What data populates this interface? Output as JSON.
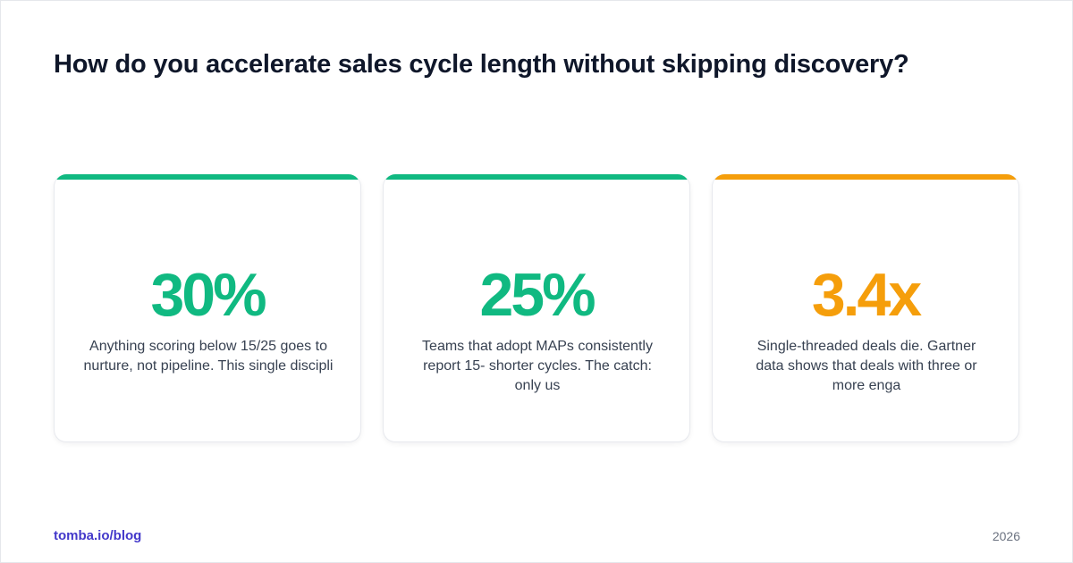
{
  "page": {
    "title": "How do you accelerate sales cycle length without skipping discovery?"
  },
  "colors": {
    "green": "#10b981",
    "orange": "#f59e0b",
    "title_text": "#0f172a",
    "body_text": "#374151",
    "link": "#4338ca",
    "muted": "#6b7280"
  },
  "cards": [
    {
      "value": "30%",
      "description": "Anything scoring below 15/25 goes to nurture, not pipeline. This single discipli",
      "accent": "#10b981"
    },
    {
      "value": "25%",
      "description": "Teams that adopt MAPs consistently report 15- shorter cycles. The catch: only us",
      "accent": "#10b981"
    },
    {
      "value": "3.4x",
      "description": "Single-threaded deals die. Gartner data shows that deals with three or more enga",
      "accent": "#f59e0b"
    }
  ],
  "footer": {
    "link_text": "tomba.io/blog",
    "year": "2026"
  }
}
